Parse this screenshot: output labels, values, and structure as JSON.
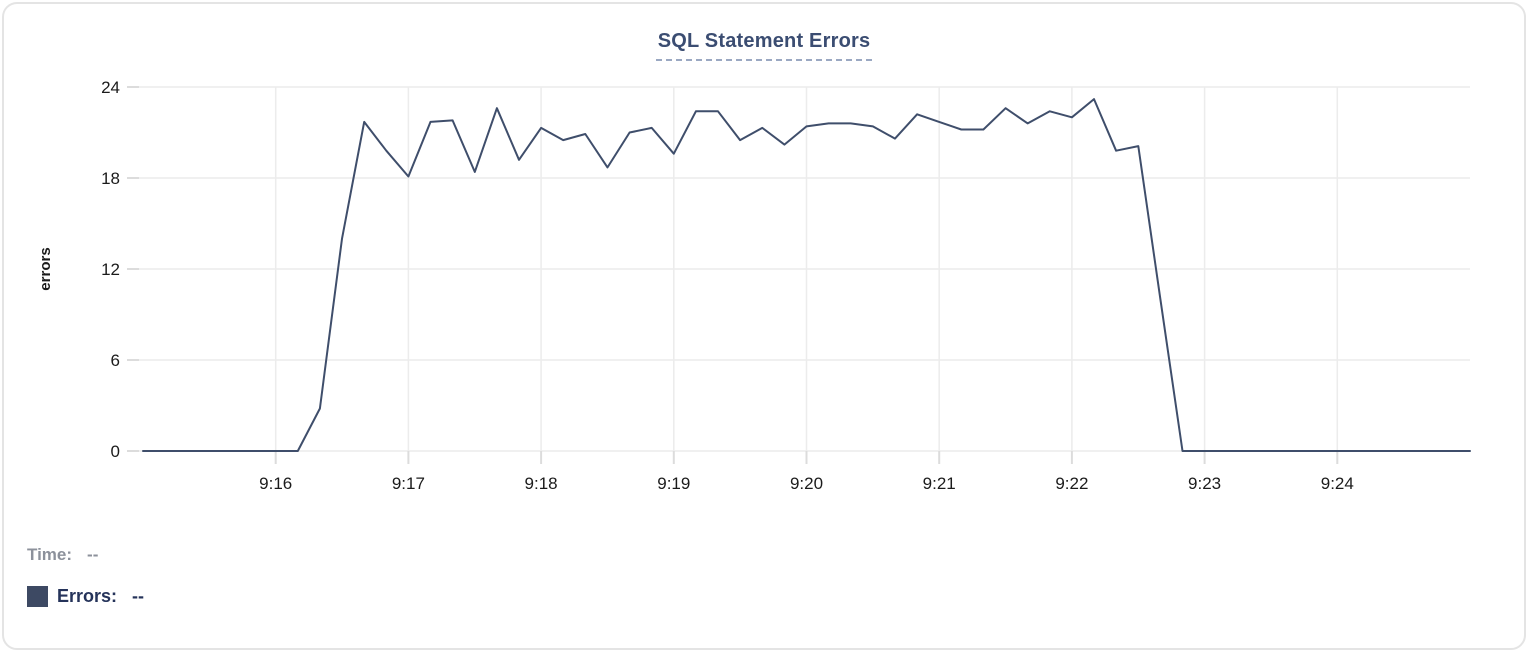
{
  "card": {
    "title": "SQL Statement Errors"
  },
  "tooltip_readout": {
    "time_label": "Time:",
    "time_value": "--",
    "errors_label": "Errors:",
    "errors_value": "--"
  },
  "colors": {
    "line": "#3f4e6b",
    "title": "#3b4d72",
    "errors_text": "#25335a",
    "time_text": "#8c919b",
    "swatch": "#3d4963",
    "grid": "#ececec",
    "tick": "#dcdcdc",
    "axis_text": "#1b1b1b",
    "dash_underline": "#9aa8c2"
  },
  "chart_data": {
    "type": "line",
    "title": "SQL Statement Errors",
    "xlabel": "",
    "ylabel": "errors",
    "x_tick_labels": [
      "9:16",
      "9:17",
      "9:18",
      "9:19",
      "9:20",
      "9:21",
      "9:22",
      "9:23",
      "9:24"
    ],
    "y_ticks": [
      0,
      6,
      12,
      18,
      24
    ],
    "ylim": [
      0,
      24
    ],
    "x_window": {
      "start": "9:15:00",
      "end": "9:25:00",
      "interval_seconds": 10
    },
    "grid": true,
    "legend_position": "none",
    "series": [
      {
        "name": "Errors",
        "values": [
          0,
          0,
          0,
          0,
          0,
          0,
          0,
          0,
          2.8,
          14,
          21.7,
          19.8,
          18.1,
          21.7,
          21.8,
          18.4,
          22.6,
          19.2,
          21.3,
          20.5,
          20.9,
          18.7,
          21,
          21.3,
          19.6,
          22.4,
          22.4,
          20.5,
          21.3,
          20.2,
          21.4,
          21.6,
          21.6,
          21.4,
          20.6,
          22.2,
          21.7,
          21.2,
          21.2,
          22.6,
          21.6,
          22.4,
          22,
          23.2,
          19.8,
          20.1,
          10,
          0,
          0,
          0,
          0,
          0,
          0,
          0,
          0,
          0,
          0,
          0,
          0,
          0,
          0
        ]
      }
    ]
  }
}
